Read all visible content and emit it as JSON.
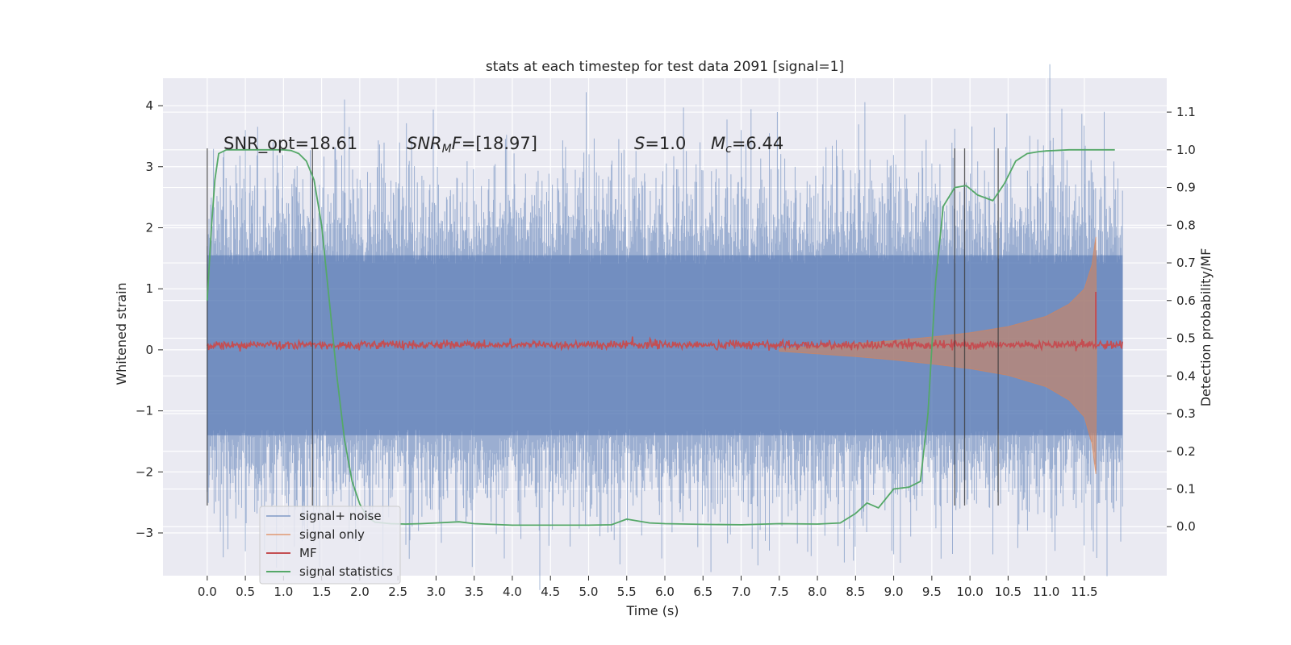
{
  "chart_data": {
    "type": "line",
    "title": "stats at each timestep for test data 2091 [signal=1]",
    "xlabel": "Time (s)",
    "ylabel_left": "Whitened strain",
    "ylabel_right": "Detection probability/MF",
    "xlim": [
      -0.58,
      12.58
    ],
    "ylim_left": [
      -3.7,
      4.45
    ],
    "ylim_right": [
      -0.13,
      1.19
    ],
    "x_ticks": [
      "0.0",
      "0.5",
      "1.0",
      "1.5",
      "2.0",
      "2.5",
      "3.0",
      "3.5",
      "4.0",
      "4.5",
      "5.0",
      "5.5",
      "6.0",
      "6.5",
      "7.0",
      "7.5",
      "8.0",
      "8.5",
      "9.0",
      "9.5",
      "10.0",
      "10.5",
      "11.0",
      "11.5"
    ],
    "y_ticks_left": [
      "−3",
      "−2",
      "−1",
      "0",
      "1",
      "2",
      "3",
      "4"
    ],
    "y_ticks_right": [
      "0.0",
      "0.1",
      "0.2",
      "0.3",
      "0.4",
      "0.5",
      "0.6",
      "0.7",
      "0.8",
      "0.9",
      "1.0",
      "1.1"
    ],
    "grid": true,
    "legend_position": "lower-left",
    "annotations": {
      "snr_opt_text": "SNR_opt=18.61",
      "snr_mf_italic": "SNR",
      "snr_mf_sub": "M",
      "snr_mf_italic2": "F",
      "snr_mf_value": "=[18.97]",
      "s_italic": "S",
      "s_value": "=1.0",
      "mc_italic": "M",
      "mc_sub": "c",
      "mc_value": "=6.44"
    },
    "series": [
      {
        "name": "signal+ noise",
        "color": "#4c72b0",
        "axis": "left",
        "envelope_upper": 1.55,
        "envelope_lower": -1.4,
        "peak_examples": [
          [
            0.5,
            3.6
          ],
          [
            1.8,
            4.1
          ],
          [
            7.0,
            3.6
          ],
          [
            11.5,
            3.3
          ],
          [
            0.5,
            -3.3
          ],
          [
            9.0,
            -3.35
          ],
          [
            10.3,
            -3.35
          ]
        ]
      },
      {
        "name": "signal only",
        "color": "#dd8452",
        "axis": "left",
        "x": [
          7.5,
          8.0,
          8.5,
          9.0,
          9.5,
          10.0,
          10.5,
          11.0,
          11.3,
          11.5,
          11.6,
          11.65,
          11.66
        ],
        "amplitude": [
          0.02,
          0.06,
          0.1,
          0.15,
          0.21,
          0.28,
          0.38,
          0.55,
          0.75,
          1.0,
          1.4,
          1.85,
          0.0
        ]
      },
      {
        "name": "MF",
        "color": "#c44e52",
        "axis": "left",
        "mean": 0.08,
        "spike": [
          11.65,
          0.95
        ]
      },
      {
        "name": "signal statistics",
        "color": "#55a868",
        "axis": "right",
        "x": [
          0.0,
          0.05,
          0.1,
          0.15,
          0.25,
          0.5,
          0.8,
          1.0,
          1.1,
          1.2,
          1.3,
          1.4,
          1.5,
          1.6,
          1.7,
          1.8,
          1.9,
          2.0,
          2.1,
          2.2,
          2.4,
          2.6,
          2.8,
          3.0,
          3.3,
          3.5,
          4.0,
          4.5,
          5.0,
          5.3,
          5.5,
          5.8,
          6.0,
          6.5,
          7.0,
          7.5,
          8.0,
          8.3,
          8.5,
          8.65,
          8.8,
          9.0,
          9.2,
          9.35,
          9.45,
          9.55,
          9.65,
          9.8,
          9.95,
          10.1,
          10.3,
          10.45,
          10.6,
          10.75,
          10.9,
          11.0,
          11.3,
          11.6,
          11.9
        ],
        "y": [
          0.6,
          0.78,
          0.92,
          0.99,
          1.0,
          1.0,
          1.0,
          1.0,
          0.998,
          0.99,
          0.97,
          0.92,
          0.8,
          0.6,
          0.4,
          0.23,
          0.12,
          0.06,
          0.025,
          0.012,
          0.008,
          0.007,
          0.008,
          0.01,
          0.013,
          0.008,
          0.004,
          0.004,
          0.004,
          0.005,
          0.02,
          0.01,
          0.008,
          0.006,
          0.005,
          0.008,
          0.007,
          0.01,
          0.035,
          0.063,
          0.05,
          0.1,
          0.105,
          0.12,
          0.3,
          0.65,
          0.85,
          0.9,
          0.905,
          0.88,
          0.865,
          0.91,
          0.97,
          0.99,
          0.995,
          0.997,
          1.0,
          1.0,
          1.0
        ]
      }
    ],
    "vertical_markers": [
      {
        "x": 0.0,
        "range": [
          -2.55,
          3.3
        ]
      },
      {
        "x": 1.38,
        "range": [
          -2.55,
          3.3
        ]
      },
      {
        "x": 9.8,
        "range": [
          -2.55,
          3.3
        ]
      },
      {
        "x": 9.93,
        "range": [
          -2.55,
          3.3
        ]
      },
      {
        "x": 10.37,
        "range": [
          -2.55,
          3.3
        ]
      }
    ],
    "colors": {
      "panel": "#eaeaf2",
      "grid": "#ffffff",
      "text": "#262626"
    }
  }
}
